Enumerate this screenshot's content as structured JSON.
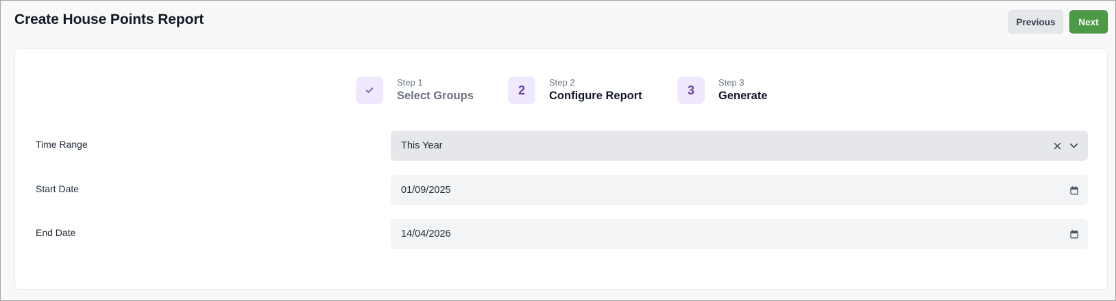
{
  "header": {
    "title": "Create House Points Report",
    "previous_label": "Previous",
    "next_label": "Next"
  },
  "steps": [
    {
      "sub": "Step 1",
      "label": "Select Groups",
      "badge": "",
      "icon": "check-icon",
      "status": "done"
    },
    {
      "sub": "Step 2",
      "label": "Configure Report",
      "badge": "2",
      "status": "current"
    },
    {
      "sub": "Step 3",
      "label": "Generate",
      "badge": "3",
      "status": "upcoming"
    }
  ],
  "form": {
    "time_range": {
      "label": "Time Range",
      "value": "This Year",
      "icons": [
        "clear-icon",
        "chevron-down-icon"
      ]
    },
    "start_date": {
      "label": "Start Date",
      "value": "01/09/2025",
      "icon": "calendar-icon"
    },
    "end_date": {
      "label": "End Date",
      "value": "14/04/2026",
      "icon": "calendar-icon"
    }
  },
  "colors": {
    "accent_purple": "#6b3fa8",
    "badge_bg": "#f0e8fc",
    "next_button": "#4c9a45",
    "field_bg": "#f3f4f6"
  }
}
